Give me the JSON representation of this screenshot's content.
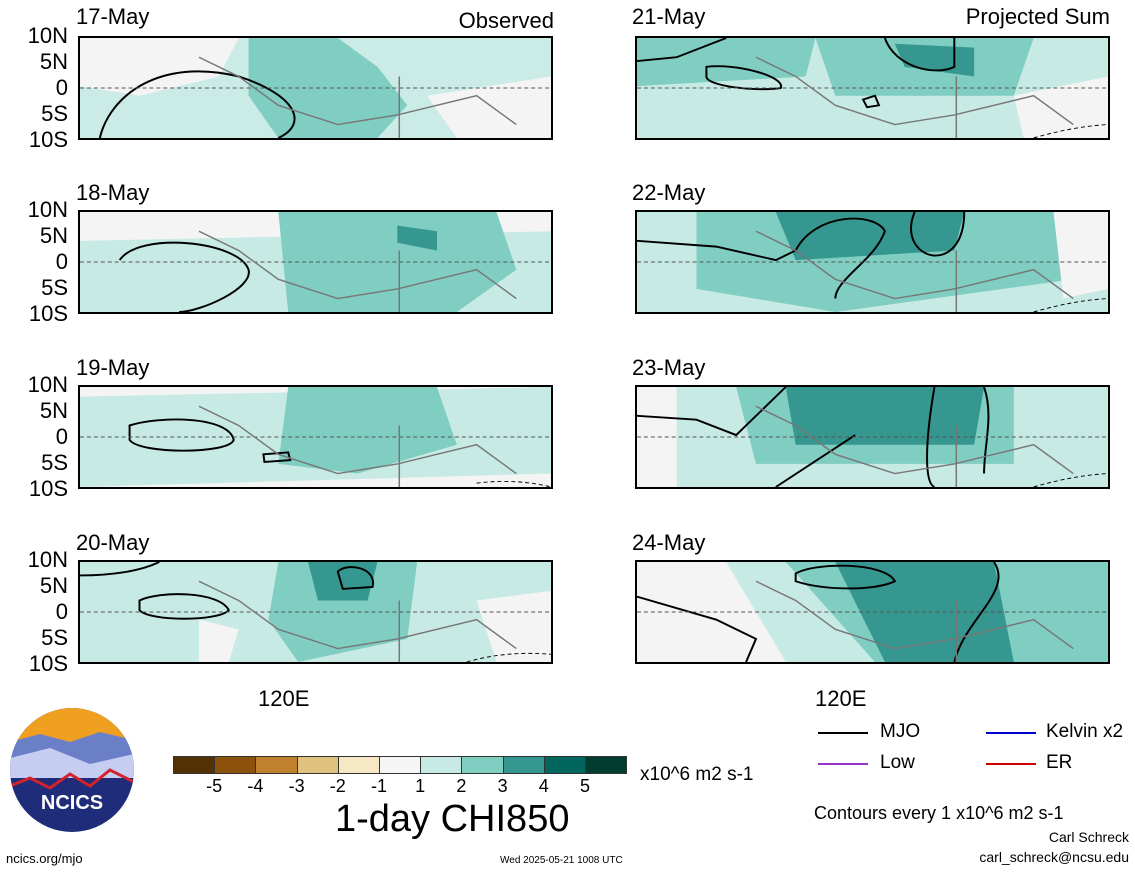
{
  "panels_left": [
    {
      "date": "17-May",
      "tag": "Observed"
    },
    {
      "date": "18-May",
      "tag": ""
    },
    {
      "date": "19-May",
      "tag": ""
    },
    {
      "date": "20-May",
      "tag": ""
    }
  ],
  "panels_right": [
    {
      "date": "21-May",
      "tag": "Projected Sum"
    },
    {
      "date": "22-May",
      "tag": ""
    },
    {
      "date": "23-May",
      "tag": ""
    },
    {
      "date": "24-May",
      "tag": ""
    }
  ],
  "lat_labels": [
    "10N",
    "5N",
    "0",
    "5S",
    "10S"
  ],
  "lon_label": "120E",
  "colorbar": {
    "ticks": [
      "-5",
      "-4",
      "-3",
      "-2",
      "-1",
      "1",
      "2",
      "3",
      "4",
      "5"
    ],
    "units": "x10^6 m2 s-1",
    "colors": [
      "#543005",
      "#8c510a",
      "#bf812d",
      "#dfc27d",
      "#f6e8c3",
      "#f5f5f5",
      "#c7eae5",
      "#80cdc1",
      "#35978f",
      "#01665e",
      "#003c30"
    ]
  },
  "title": "1-day CHI850",
  "legend": {
    "mjo": "MJO",
    "kelvin": "Kelvin x2",
    "low": "Low",
    "er": "ER",
    "colors": {
      "mjo": "#000000",
      "kelvin": "#0000cc",
      "low": "#9933cc",
      "er": "#cc0000"
    }
  },
  "contours_note": "Contours every 1 x10^6 m2 s-1",
  "credit_name": "Carl Schreck",
  "credit_email": "carl_schreck@ncsu.edu",
  "url": "ncics.org/mjo",
  "timestamp": "Wed 2025-05-21 1008 UTC",
  "logo_text": "NCICS"
}
